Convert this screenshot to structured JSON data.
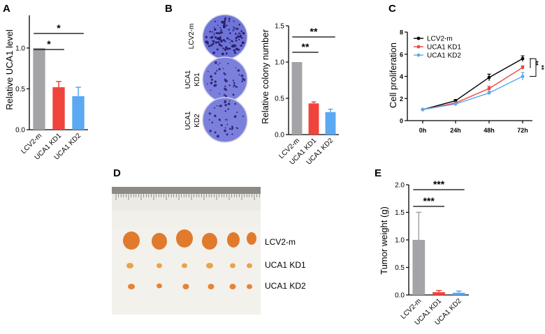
{
  "colors": {
    "gray": "#a4a4a8",
    "red": "#f0433c",
    "blue": "#5aa9f2",
    "black": "#000000",
    "dish": "#6f74d8",
    "ruler": "#e9e7dc",
    "tumor": "#e8892f"
  },
  "chart_data": [
    {
      "panel": "A",
      "type": "bar",
      "categories": [
        "LCV2-m",
        "UCA1 KD1",
        "UCA1 KD2"
      ],
      "values": [
        1.0,
        0.52,
        0.41
      ],
      "errors": [
        0.0,
        0.07,
        0.11
      ],
      "ylabel": "Relative UCA1 level",
      "yticks": [
        "0.0",
        "0.5",
        "1.0"
      ],
      "ylim": [
        0,
        1.4
      ],
      "significance": [
        {
          "from": 0,
          "to": 1,
          "label": "*"
        },
        {
          "from": 0,
          "to": 2,
          "label": "*"
        }
      ]
    },
    {
      "panel": "B",
      "type": "bar",
      "categories": [
        "LCV2-m",
        "UCA1 KD1",
        "UCA1 KD2"
      ],
      "values": [
        1.0,
        0.43,
        0.31
      ],
      "errors": [
        0.0,
        0.02,
        0.04
      ],
      "ylabel": "Relative colony number",
      "yticks": [
        "0.0",
        "0.5",
        "1.0",
        "1.5"
      ],
      "ylim": [
        0,
        1.5
      ],
      "significance": [
        {
          "from": 0,
          "to": 1,
          "label": "**"
        },
        {
          "from": 0,
          "to": 2,
          "label": "**"
        }
      ],
      "dish_labels": [
        "LCV2-m",
        "UCA1\nKD1",
        "UCA1\nKD2"
      ]
    },
    {
      "panel": "C",
      "type": "line",
      "x": [
        "0h",
        "24h",
        "48h",
        "72h"
      ],
      "ylabel": "Cell proliferation",
      "yticks": [
        "0",
        "2",
        "4",
        "6",
        "8"
      ],
      "ylim": [
        0,
        8
      ],
      "series": [
        {
          "name": "LCV2-m",
          "values": [
            1.0,
            1.8,
            3.9,
            5.6
          ],
          "errors": [
            0.05,
            0.1,
            0.3,
            0.25
          ]
        },
        {
          "name": "UCA1 KD1",
          "values": [
            1.0,
            1.6,
            2.9,
            4.8
          ],
          "errors": [
            0.05,
            0.08,
            0.2,
            0.15
          ]
        },
        {
          "name": "UCA1 KD2",
          "values": [
            1.0,
            1.5,
            2.5,
            4.0
          ],
          "errors": [
            0.05,
            0.08,
            0.15,
            0.35
          ]
        }
      ],
      "significance": [
        {
          "label": "**"
        },
        {
          "label": "**"
        }
      ]
    },
    {
      "panel": "D",
      "type": "image",
      "row_labels": [
        "LCV2-m",
        "UCA1 KD1",
        "UCA1 KD2"
      ]
    },
    {
      "panel": "E",
      "type": "bar",
      "categories": [
        "LCV2-m",
        "UCA1 KD1",
        "UCA1 KD2"
      ],
      "values": [
        1.0,
        0.05,
        0.04
      ],
      "errors": [
        0.5,
        0.03,
        0.03
      ],
      "ylabel": "Tumor weight (g)",
      "yticks": [
        "0.0",
        "0.5",
        "1.0",
        "1.5",
        "2.0"
      ],
      "ylim": [
        0,
        2.0
      ],
      "significance": [
        {
          "from": 0,
          "to": 1,
          "label": "***"
        },
        {
          "from": 0,
          "to": 2,
          "label": "***"
        }
      ]
    }
  ]
}
